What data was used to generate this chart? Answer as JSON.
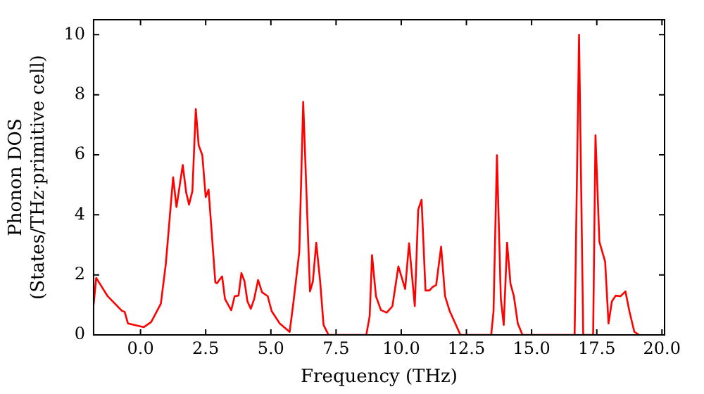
{
  "chart_data": {
    "type": "line",
    "xlabel": "Frequency (THz)",
    "ylabel": "Phonon DOS\n(States/THz·primitive cell)",
    "xlim": [
      -1.8,
      20.1
    ],
    "ylim": [
      0,
      10.5
    ],
    "xticks": [
      {
        "value": 0,
        "label": "0.0"
      },
      {
        "value": 2.5,
        "label": "2.5"
      },
      {
        "value": 5,
        "label": "5.0"
      },
      {
        "value": 7.5,
        "label": "7.5"
      },
      {
        "value": 10,
        "label": "10.0"
      },
      {
        "value": 12.5,
        "label": "12.5"
      },
      {
        "value": 15,
        "label": "15.0"
      },
      {
        "value": 17.5,
        "label": "17.5"
      },
      {
        "value": 20,
        "label": "20.0"
      }
    ],
    "yticks": [
      0,
      2,
      4,
      6,
      8,
      10
    ],
    "grid": false,
    "legend": false,
    "marker": "none",
    "line_style": "solid",
    "series": [
      {
        "color": "#ff0000",
        "x": [
          -1.8,
          -1.7,
          -1.27,
          -0.71,
          -0.61,
          -0.48,
          0.13,
          0.41,
          0.78,
          0.97,
          1.25,
          1.38,
          1.62,
          1.75,
          1.86,
          1.99,
          2.12,
          2.23,
          2.37,
          2.5,
          2.61,
          2.87,
          2.93,
          3.13,
          3.24,
          3.48,
          3.61,
          3.76,
          3.87,
          3.99,
          4.1,
          4.23,
          4.36,
          4.51,
          4.66,
          4.88,
          5.03,
          5.34,
          5.72,
          5.87,
          6.09,
          6.24,
          6.5,
          6.61,
          6.74,
          6.89,
          7.02,
          7.21,
          8.66,
          8.79,
          8.88,
          9.03,
          9.22,
          9.44,
          9.66,
          9.89,
          10.15,
          10.3,
          10.52,
          10.65,
          10.78,
          10.93,
          11.08,
          11.21,
          11.34,
          11.53,
          11.68,
          11.86,
          12.27,
          13.45,
          13.54,
          13.67,
          13.82,
          13.93,
          14.06,
          14.19,
          14.32,
          14.47,
          14.65,
          16.65,
          16.82,
          16.98,
          17.36,
          17.45,
          17.6,
          17.82,
          17.95,
          18.08,
          18.23,
          18.41,
          18.6,
          18.75,
          18.94,
          19.13
        ],
        "values": [
          1.0,
          1.9,
          1.3,
          0.8,
          0.77,
          0.38,
          0.26,
          0.43,
          1.04,
          2.36,
          5.25,
          4.26,
          5.66,
          4.75,
          4.34,
          4.79,
          7.52,
          6.32,
          5.99,
          4.59,
          4.84,
          1.75,
          1.72,
          1.95,
          1.2,
          0.82,
          1.29,
          1.31,
          2.06,
          1.78,
          1.12,
          0.87,
          1.2,
          1.83,
          1.42,
          1.29,
          0.79,
          0.38,
          0.1,
          1.12,
          2.77,
          7.76,
          1.45,
          1.78,
          3.07,
          1.78,
          0.33,
          0,
          0,
          0.63,
          2.66,
          1.29,
          0.83,
          0.74,
          0.95,
          2.28,
          1.53,
          3.05,
          0.96,
          4.17,
          4.5,
          1.48,
          1.48,
          1.6,
          1.66,
          2.94,
          1.29,
          0.79,
          0,
          0,
          0.79,
          5.99,
          1.2,
          0.33,
          3.07,
          1.7,
          1.29,
          0.38,
          0,
          0,
          10.0,
          0,
          0,
          6.65,
          3.1,
          2.44,
          0.38,
          1.12,
          1.31,
          1.29,
          1.45,
          0.79,
          0.1,
          0
        ]
      }
    ]
  }
}
